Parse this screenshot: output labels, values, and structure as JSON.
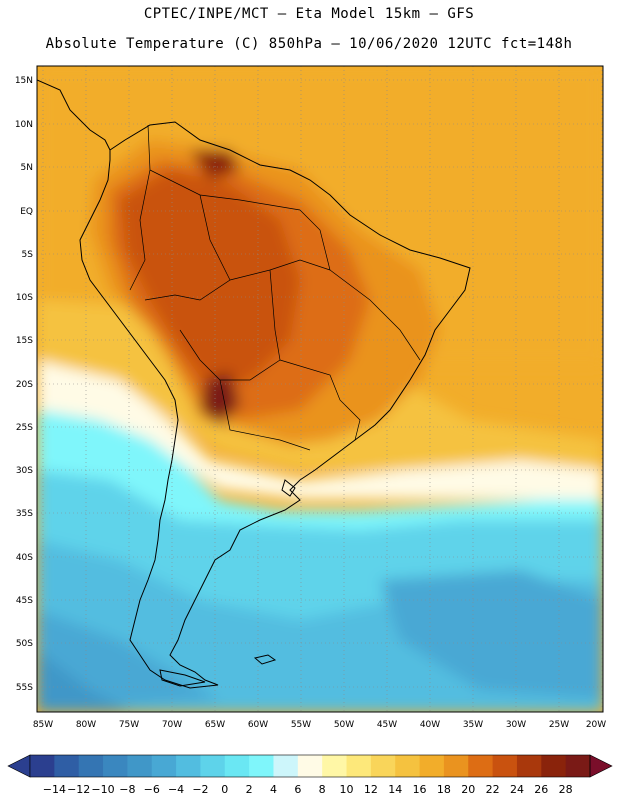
{
  "title_line1": "CPTEC/INPE/MCT —  Eta Model 15km — GFS",
  "title_line2": "Absolute Temperature (C) 850hPa — 10/06/2020 12UTC fct=148h",
  "lat_labels": [
    "15N",
    "10N",
    "5N",
    "EQ",
    "5S",
    "10S",
    "15S",
    "20S",
    "25S",
    "30S",
    "35S",
    "40S",
    "45S",
    "50S",
    "55S"
  ],
  "lon_labels": [
    "85W",
    "80W",
    "75W",
    "70W",
    "65W",
    "60W",
    "55W",
    "50W",
    "45W",
    "40W",
    "35W",
    "30W",
    "25W",
    "20W"
  ],
  "colorbar": {
    "labels": [
      "-14",
      "-12",
      "-10",
      "-8",
      "-6",
      "-4",
      "-2",
      "0",
      "2",
      "4",
      "6",
      "8",
      "10",
      "12",
      "14",
      "16",
      "18",
      "20",
      "22",
      "24",
      "26",
      "28"
    ],
    "colors": [
      "#2b3f8f",
      "#2f5ea5",
      "#3475b3",
      "#3a87bf",
      "#4097c8",
      "#48a8d4",
      "#52bde0",
      "#5ed3ea",
      "#6ae7f3",
      "#7ff6fb",
      "#cdf6fb",
      "#fffbe6",
      "#fff7a6",
      "#fde87a",
      "#f9d55a",
      "#f5c23f",
      "#f2ad2a",
      "#ea931f",
      "#dd6d14",
      "#c9520f",
      "#a9380c",
      "#8a230b",
      "#7a1a16"
    ]
  }
}
